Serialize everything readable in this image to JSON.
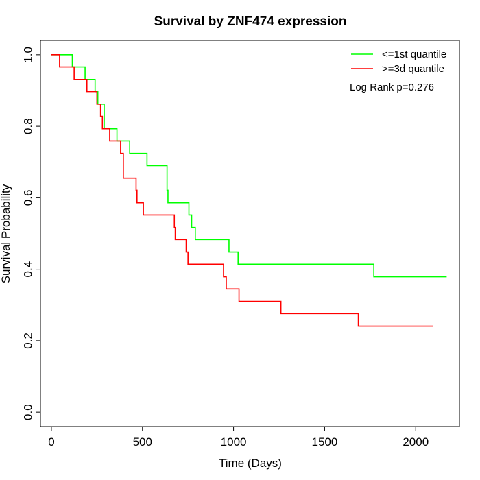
{
  "chart_data": {
    "type": "line",
    "title": "Survival by ZNF474 expression",
    "xlabel": "Time (Days)",
    "ylabel": "Survival Probability",
    "xlim": [
      -60,
      2240
    ],
    "ylim": [
      -0.04,
      1.04
    ],
    "x_ticks": [
      0,
      500,
      1000,
      1500,
      2000
    ],
    "y_ticks": [
      0.0,
      0.2,
      0.4,
      0.6,
      0.8,
      1.0
    ],
    "x_tick_labels": [
      "0",
      "500",
      "1000",
      "1500",
      "2000"
    ],
    "y_tick_labels": [
      "0.0",
      "0.2",
      "0.4",
      "0.6",
      "0.8",
      "1.0"
    ],
    "grid": false,
    "legend_position": "top-right",
    "annotation": "Log Rank p=0.276",
    "series": [
      {
        "name": "<=1st quantile",
        "color": "#00ff00",
        "x": [
          0,
          115,
          185,
          240,
          255,
          290,
          360,
          430,
          525,
          635,
          640,
          755,
          770,
          790,
          975,
          1025,
          1770,
          2170
        ],
        "y": [
          1.0,
          0.966,
          0.931,
          0.897,
          0.862,
          0.793,
          0.759,
          0.724,
          0.69,
          0.621,
          0.586,
          0.552,
          0.517,
          0.483,
          0.448,
          0.414,
          0.379,
          0.379
        ]
      },
      {
        "name": ">=3d quantile",
        "color": "#ff0000",
        "x": [
          0,
          45,
          125,
          195,
          250,
          270,
          280,
          320,
          380,
          395,
          465,
          470,
          505,
          675,
          680,
          685,
          740,
          750,
          945,
          960,
          1030,
          1260,
          1685,
          2095
        ],
        "y": [
          1.0,
          0.966,
          0.931,
          0.897,
          0.862,
          0.828,
          0.793,
          0.759,
          0.724,
          0.655,
          0.621,
          0.586,
          0.552,
          0.517,
          0.483,
          0.483,
          0.448,
          0.414,
          0.379,
          0.345,
          0.31,
          0.276,
          0.241,
          0.241
        ]
      }
    ]
  }
}
